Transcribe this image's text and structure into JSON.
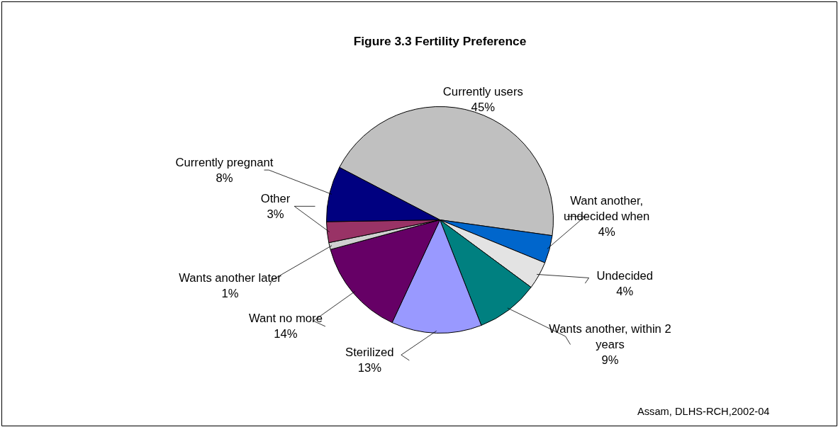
{
  "chart_data": {
    "type": "pie",
    "title": "Figure 3.3 Fertility Preference",
    "categories": [
      "Currently users",
      "Want another, undecided when",
      "Undecided",
      "Wants another, within 2 years",
      "Sterilized",
      "Want no more",
      "Wants another later",
      "Other",
      "Currently pregnant"
    ],
    "values": [
      45,
      4,
      4,
      9,
      13,
      14,
      1,
      3,
      8
    ],
    "value_labels": [
      "45%",
      "4%",
      "4%",
      "9%",
      "13%",
      "14%",
      "1%",
      "3%",
      "8%"
    ],
    "colors": [
      "#c0c0c0",
      "#0066cc",
      "#e3e3e3",
      "#008080",
      "#9999ff",
      "#660066",
      "#d0d0d0",
      "#993366",
      "#000080"
    ],
    "annotations": [
      "Assam, DLHS-RCH,2002-04"
    ]
  }
}
